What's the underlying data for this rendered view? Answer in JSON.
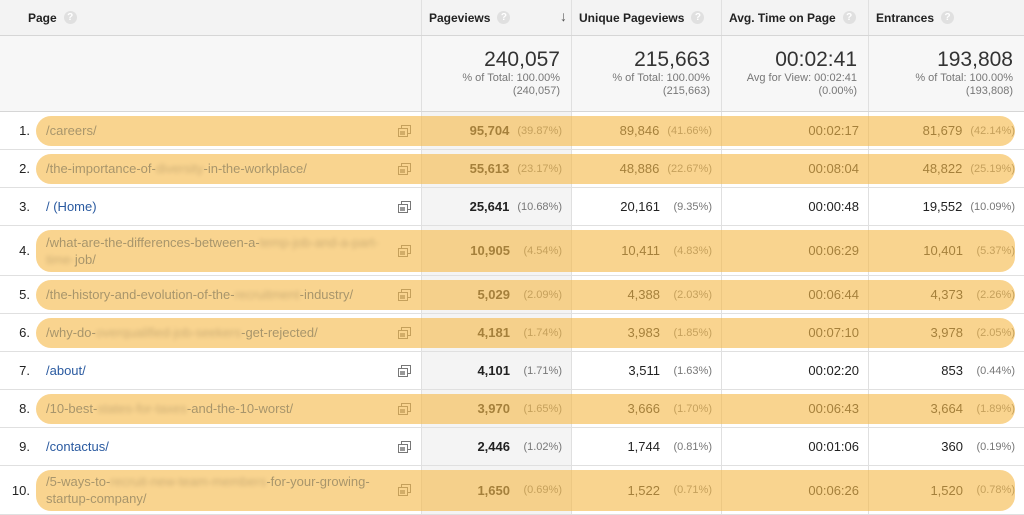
{
  "columns": {
    "page": "Page",
    "pageviews": "Pageviews",
    "unique_pageviews": "Unique Pageviews",
    "avg_time": "Avg. Time on Page",
    "entrances": "Entrances",
    "help_glyph": "?",
    "sort_glyph": "↓"
  },
  "totals": {
    "pageviews": {
      "value": "240,057",
      "line1": "% of Total: 100.00%",
      "line2": "(240,057)"
    },
    "unique_pageviews": {
      "value": "215,663",
      "line1": "% of Total: 100.00%",
      "line2": "(215,663)"
    },
    "avg_time": {
      "value": "00:02:41",
      "line1": "Avg for View: 00:02:41",
      "line2": "(0.00%)"
    },
    "entrances": {
      "value": "193,808",
      "line1": "% of Total: 100.00%",
      "line2": "(193,808)"
    }
  },
  "rows": [
    {
      "rank": "1.",
      "parts": [
        {
          "t": "/careers/",
          "b": false
        }
      ],
      "pv": "95,704",
      "pv_pct": "(39.87%)",
      "upv": "89,846",
      "upv_pct": "(41.66%)",
      "time": "00:02:17",
      "ent": "81,679",
      "ent_pct": "(42.14%)",
      "highlighted": true
    },
    {
      "rank": "2.",
      "parts": [
        {
          "t": "/the-importance-of-",
          "b": false
        },
        {
          "t": "diversity",
          "b": true
        },
        {
          "t": "-in-the-workplace/",
          "b": false
        }
      ],
      "pv": "55,613",
      "pv_pct": "(23.17%)",
      "upv": "48,886",
      "upv_pct": "(22.67%)",
      "time": "00:08:04",
      "ent": "48,822",
      "ent_pct": "(25.19%)",
      "highlighted": true
    },
    {
      "rank": "3.",
      "parts": [
        {
          "t": "/  (Home)",
          "b": false
        }
      ],
      "pv": "25,641",
      "pv_pct": "(10.68%)",
      "upv": "20,161",
      "upv_pct": "(9.35%)",
      "time": "00:00:48",
      "ent": "19,552",
      "ent_pct": "(10.09%)",
      "highlighted": false
    },
    {
      "rank": "4.",
      "parts": [
        {
          "t": "/what-are-the-differences-between-a-",
          "b": false
        },
        {
          "t": "temp-job-and-a-part-time-",
          "b": true
        },
        {
          "t": "job/",
          "b": false
        }
      ],
      "pv": "10,905",
      "pv_pct": "(4.54%)",
      "upv": "10,411",
      "upv_pct": "(4.83%)",
      "time": "00:06:29",
      "ent": "10,401",
      "ent_pct": "(5.37%)",
      "highlighted": true
    },
    {
      "rank": "5.",
      "parts": [
        {
          "t": "/the-history-and-evolution-of-the-",
          "b": false
        },
        {
          "t": "recruitment",
          "b": true
        },
        {
          "t": "-industry/",
          "b": false
        }
      ],
      "pv": "5,029",
      "pv_pct": "(2.09%)",
      "upv": "4,388",
      "upv_pct": "(2.03%)",
      "time": "00:06:44",
      "ent": "4,373",
      "ent_pct": "(2.26%)",
      "highlighted": true
    },
    {
      "rank": "6.",
      "parts": [
        {
          "t": "/why-do-",
          "b": false
        },
        {
          "t": "overqualified-job-seekers",
          "b": true
        },
        {
          "t": "-get-rejected/",
          "b": false
        }
      ],
      "pv": "4,181",
      "pv_pct": "(1.74%)",
      "upv": "3,983",
      "upv_pct": "(1.85%)",
      "time": "00:07:10",
      "ent": "3,978",
      "ent_pct": "(2.05%)",
      "highlighted": true
    },
    {
      "rank": "7.",
      "parts": [
        {
          "t": "/about/",
          "b": false
        }
      ],
      "pv": "4,101",
      "pv_pct": "(1.71%)",
      "upv": "3,511",
      "upv_pct": "(1.63%)",
      "time": "00:02:20",
      "ent": "853",
      "ent_pct": "(0.44%)",
      "highlighted": false
    },
    {
      "rank": "8.",
      "parts": [
        {
          "t": "/10-best-",
          "b": false
        },
        {
          "t": "states-for-taxes",
          "b": true
        },
        {
          "t": "-and-the-10-worst/",
          "b": false
        }
      ],
      "pv": "3,970",
      "pv_pct": "(1.65%)",
      "upv": "3,666",
      "upv_pct": "(1.70%)",
      "time": "00:06:43",
      "ent": "3,664",
      "ent_pct": "(1.89%)",
      "highlighted": true
    },
    {
      "rank": "9.",
      "parts": [
        {
          "t": "/contactus/",
          "b": false
        }
      ],
      "pv": "2,446",
      "pv_pct": "(1.02%)",
      "upv": "1,744",
      "upv_pct": "(0.81%)",
      "time": "00:01:06",
      "ent": "360",
      "ent_pct": "(0.19%)",
      "highlighted": false
    },
    {
      "rank": "10.",
      "parts": [
        {
          "t": "/5-ways-to-",
          "b": false
        },
        {
          "t": "recruit-new-team-members",
          "b": true
        },
        {
          "t": "-for-your-growing-startup-company/",
          "b": false
        }
      ],
      "pv": "1,650",
      "pv_pct": "(0.69%)",
      "upv": "1,522",
      "upv_pct": "(0.71%)",
      "time": "00:06:26",
      "ent": "1,520",
      "ent_pct": "(0.78%)",
      "highlighted": true
    }
  ]
}
